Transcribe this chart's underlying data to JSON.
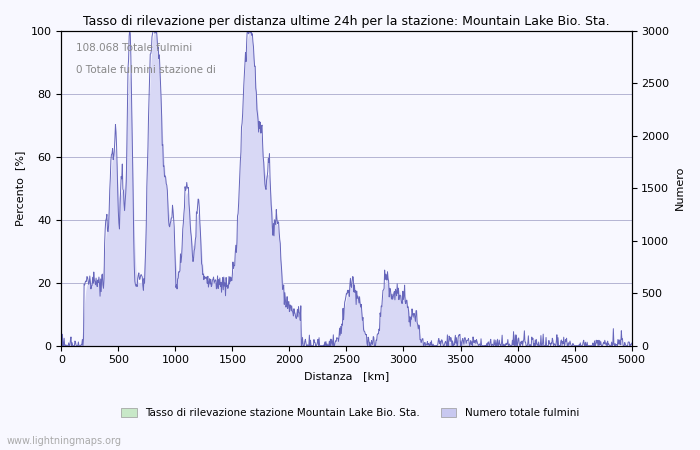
{
  "title": "Tasso di rilevazione per distanza ultime 24h per la stazione: Mountain Lake Bio. Sta.",
  "xlabel": "Distanza   [km]",
  "ylabel_left": "Percento  [%]",
  "ylabel_right": "Numero",
  "annotation_line1": "108.068 Totale fulmini",
  "annotation_line2": "0 Totale fulmini stazione di",
  "xlim": [
    0,
    5000
  ],
  "ylim_left": [
    0,
    100
  ],
  "ylim_right": [
    0,
    3000
  ],
  "xticks": [
    0,
    500,
    1000,
    1500,
    2000,
    2500,
    3000,
    3500,
    4000,
    4500,
    5000
  ],
  "yticks_left": [
    0,
    20,
    40,
    60,
    80,
    100
  ],
  "yticks_right": [
    0,
    500,
    1000,
    1500,
    2000,
    2500,
    3000
  ],
  "legend_label1": "Tasso di rilevazione stazione Mountain Lake Bio. Sta.",
  "legend_label2": "Numero totale fulmini",
  "watermark": "www.lightningmaps.org",
  "fill_color_rate": "#d8d8f5",
  "fill_color_lightning": "#d8d8f5",
  "line_color": "#6666bb",
  "background_color": "#f8f8ff",
  "grid_color": "#aaaacc",
  "legend_color1": "#c8e8c8",
  "legend_color2": "#c8c8f0"
}
